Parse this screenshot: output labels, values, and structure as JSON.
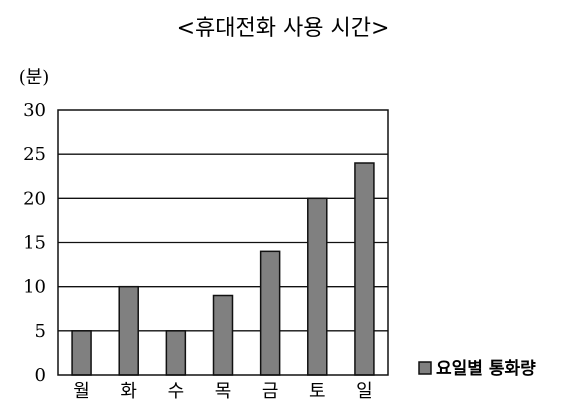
{
  "chart_data": {
    "type": "bar",
    "title": "<휴대전화 사용 시간>",
    "ylabel": "(분)",
    "xlabel": "",
    "categories": [
      "월",
      "화",
      "수",
      "목",
      "금",
      "토",
      "일"
    ],
    "series": [
      {
        "name": "요일별 통화량",
        "values": [
          5,
          10,
          5,
          9,
          14,
          20,
          24
        ],
        "color": "#808080"
      }
    ],
    "ylim": [
      0,
      30
    ],
    "yticks": [
      0,
      5,
      10,
      15,
      20,
      25,
      30
    ],
    "grid": true,
    "legend": "right"
  }
}
